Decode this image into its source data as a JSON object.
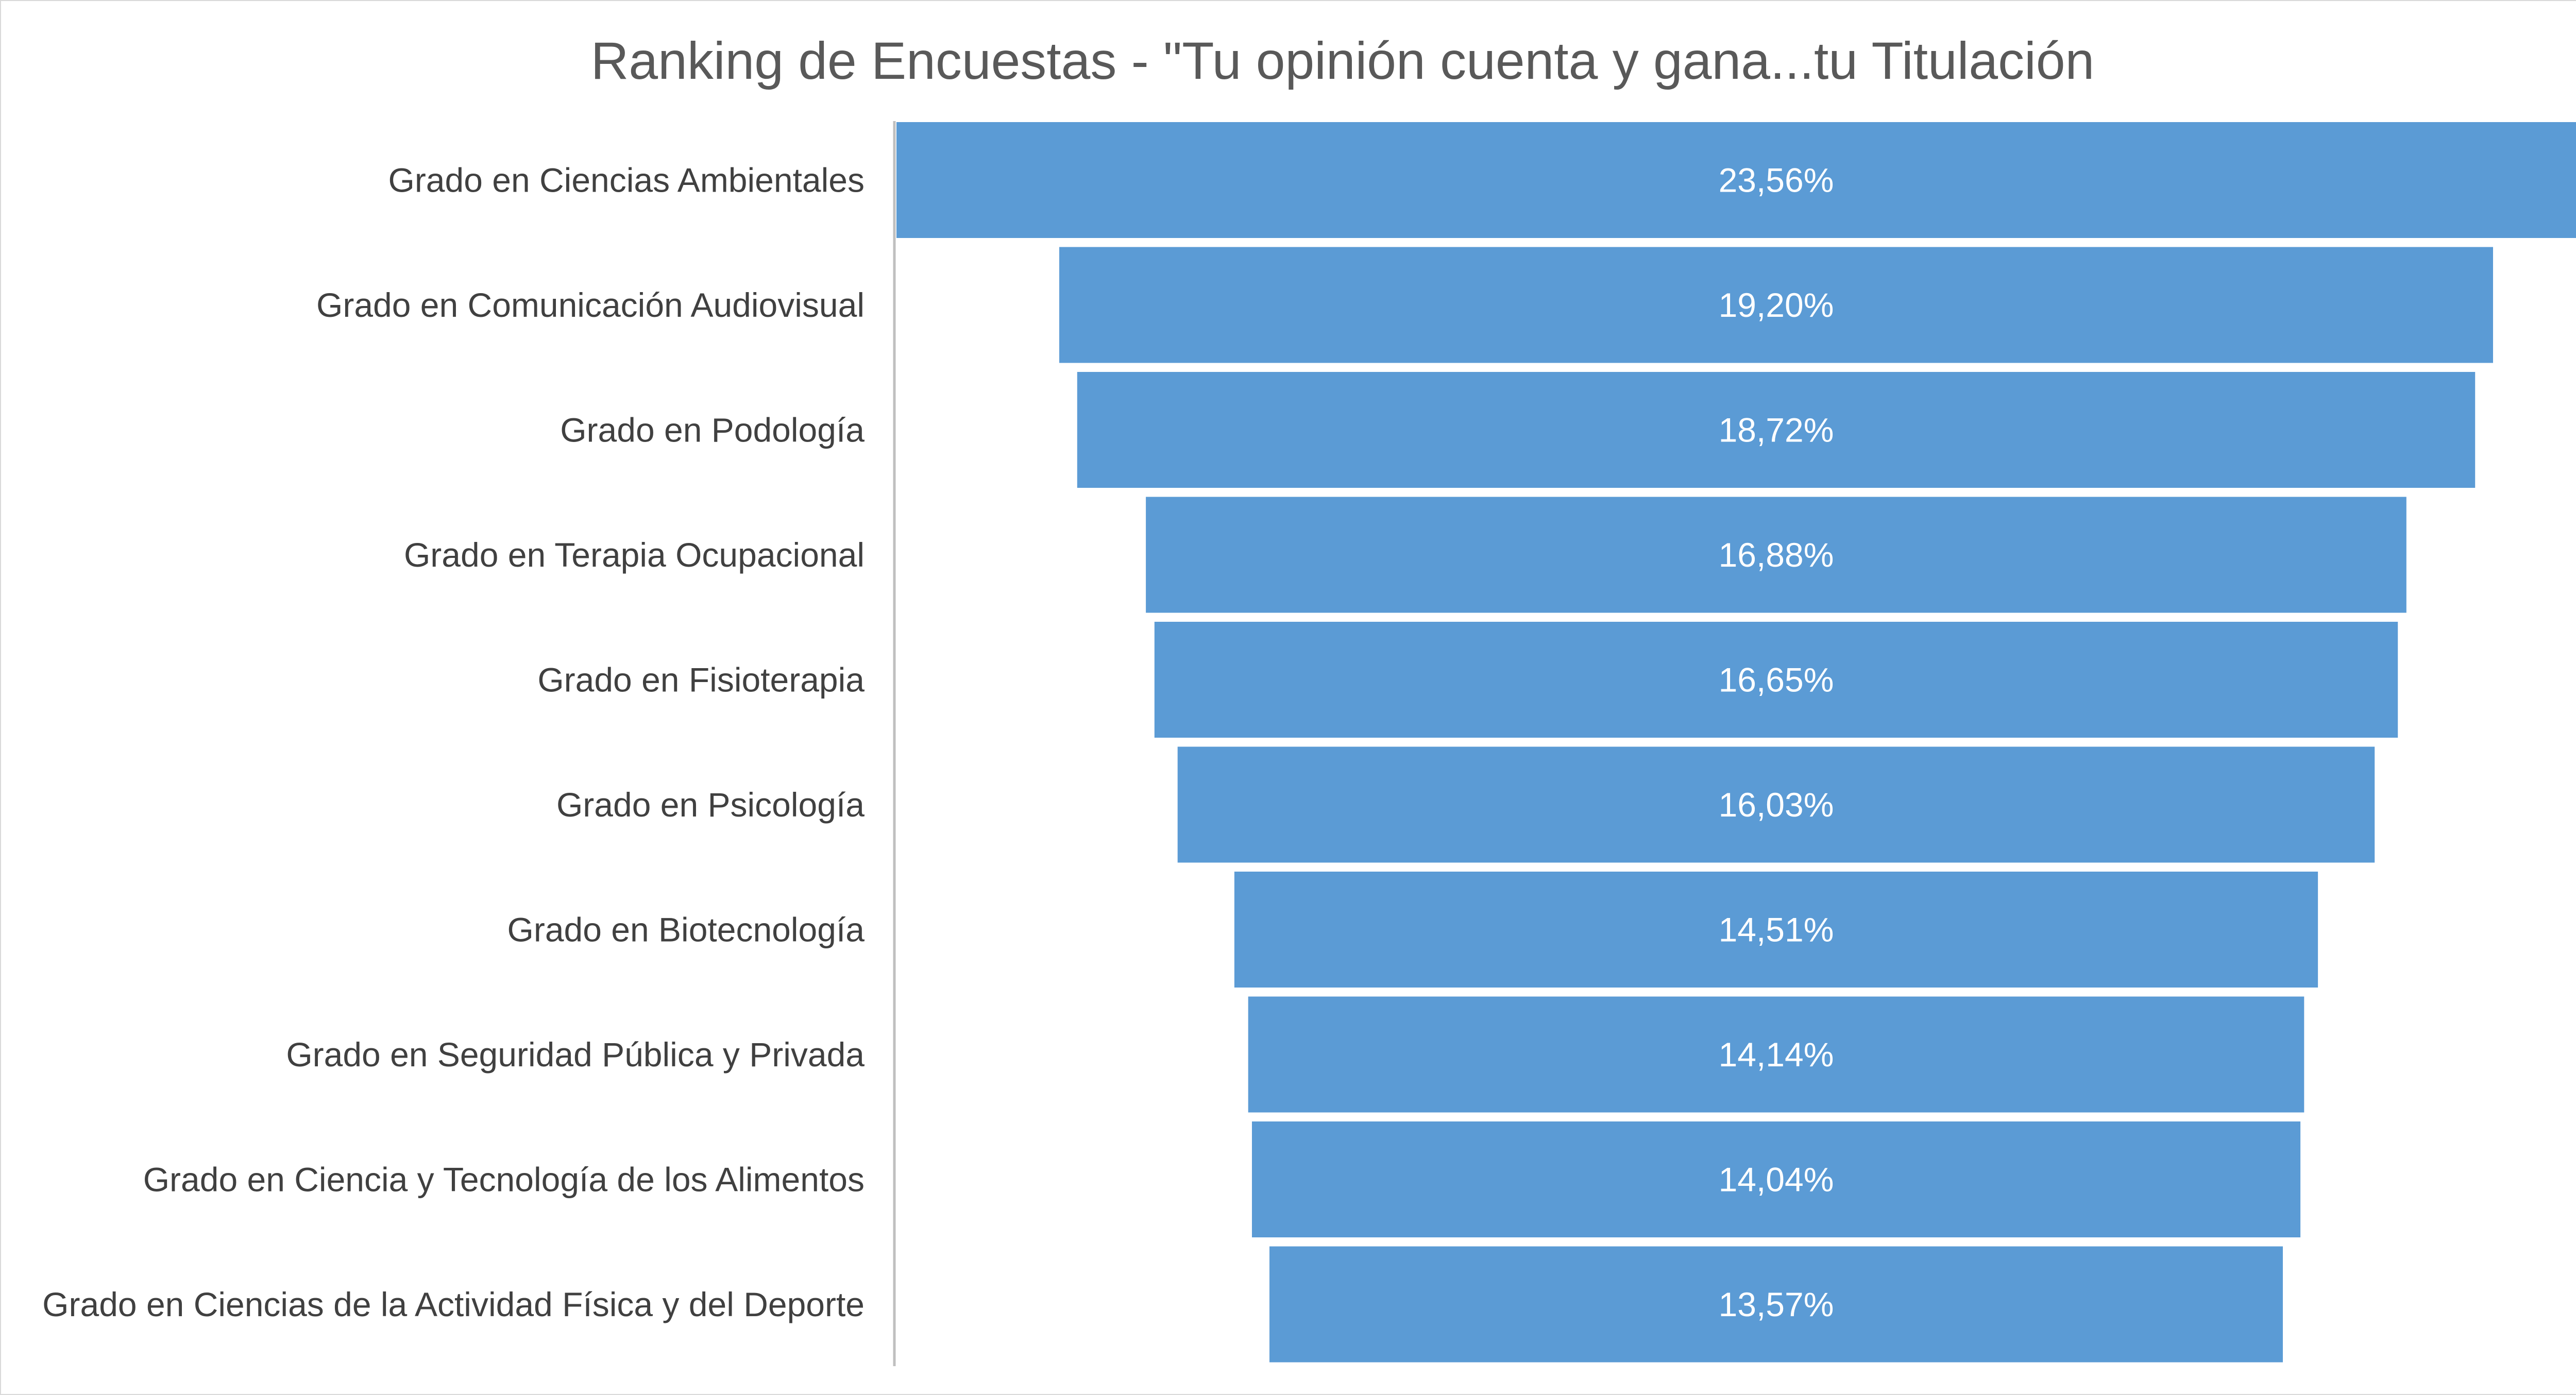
{
  "chart_data": {
    "type": "bar",
    "subtype": "funnel",
    "orientation": "horizontal",
    "title": "Ranking de Encuestas - \"Tu opinión cuenta y gana...tu Titulación",
    "categories": [
      "Grado en Ciencias Ambientales",
      "Grado en Comunicación Audiovisual",
      "Grado en Podología",
      "Grado en Terapia Ocupacional",
      "Grado en Fisioterapia",
      "Grado en Psicología",
      "Grado en Biotecnología",
      "Grado en Seguridad Pública y Privada",
      "Grado en Ciencia y Tecnología de los Alimentos",
      "Grado en Ciencias de la Actividad Física y del Deporte"
    ],
    "values": [
      23.56,
      19.2,
      18.72,
      16.88,
      16.65,
      16.03,
      14.51,
      14.14,
      14.04,
      13.57
    ],
    "data_labels": [
      "23,56%",
      "19,20%",
      "18,72%",
      "16,88%",
      "16,65%",
      "16,03%",
      "14,51%",
      "14,14%",
      "14,04%",
      "13,57%"
    ],
    "unit": "%",
    "bar_color": "#5b9bd5",
    "legend": "none",
    "grid": false
  }
}
